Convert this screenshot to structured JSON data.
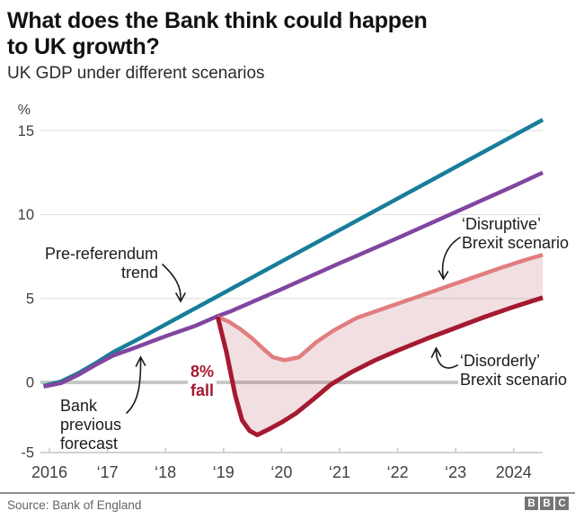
{
  "header": {
    "title_lines": [
      "What does the Bank think could happen",
      "to UK growth?"
    ],
    "subtitle": "UK GDP under different scenarios"
  },
  "annotations": {
    "pre_referendum": "Pre-referendum\ntrend",
    "bank_forecast": "Bank\nprevious\nforecast",
    "fall_callout": "8%\nfall",
    "disruptive": "‘Disruptive’\nBrexit scenario",
    "disorderly": "‘Disorderly’\nBrexit scenario"
  },
  "footer": {
    "source": "Source: Bank of England",
    "logo_letters": [
      "B",
      "B",
      "C"
    ]
  },
  "colors": {
    "pre_referendum": "#177e99",
    "bank_forecast": "#8146a0",
    "disruptive": "#e17d80",
    "disorderly": "#a51a31",
    "band_fill": "rgba(165,26,49,0.14)",
    "grid_minor": "#e3e3e3",
    "grid_zero": "#c7c7c7",
    "axis_line": "#d2d2d2",
    "axis_text": "#404040",
    "fall_text": "#a51a31"
  },
  "chart_data": {
    "type": "line",
    "title": "UK GDP under different scenarios",
    "xlabel": "",
    "ylabel": "%",
    "xlim": [
      2015.9,
      2024.5
    ],
    "ylim": [
      -5,
      16
    ],
    "grid": "horizontal",
    "legend_position": "inline-annotations",
    "y_axis": {
      "unit": "%",
      "ticks": [
        15,
        10,
        5,
        0,
        -5
      ]
    },
    "x_axis": {
      "ticks": [
        {
          "year": 2016,
          "label": "2016"
        },
        {
          "year": 2017,
          "label": "‘17"
        },
        {
          "year": 2018,
          "label": "‘18"
        },
        {
          "year": 2019,
          "label": "‘19"
        },
        {
          "year": 2020,
          "label": "‘20"
        },
        {
          "year": 2021,
          "label": "‘21"
        },
        {
          "year": 2022,
          "label": "‘22"
        },
        {
          "year": 2023,
          "label": "‘23"
        },
        {
          "year": 2024,
          "label": "2024"
        }
      ]
    },
    "series": [
      {
        "id": "pre_referendum",
        "name": "Pre-referendum trend",
        "color": "#177e99",
        "width": 4.5,
        "points": [
          [
            2015.9,
            -0.25
          ],
          [
            2016.2,
            0.05
          ],
          [
            2016.5,
            0.55
          ],
          [
            2016.8,
            1.15
          ],
          [
            2017.1,
            1.8
          ],
          [
            2017.6,
            2.7
          ],
          [
            2024.5,
            15.65
          ]
        ]
      },
      {
        "id": "bank_forecast",
        "name": "Bank previous forecast",
        "color": "#8146a0",
        "width": 4.5,
        "points": [
          [
            2015.9,
            -0.3
          ],
          [
            2016.2,
            -0.05
          ],
          [
            2016.5,
            0.45
          ],
          [
            2016.8,
            1.05
          ],
          [
            2017.1,
            1.6
          ],
          [
            2017.5,
            2.1
          ],
          [
            2018.0,
            2.75
          ],
          [
            2018.5,
            3.35
          ],
          [
            2018.9,
            3.95
          ],
          [
            2019.1,
            4.2
          ],
          [
            2020.0,
            5.55
          ],
          [
            2021.0,
            7.1
          ],
          [
            2022.0,
            8.6
          ],
          [
            2023.0,
            10.15
          ],
          [
            2024.0,
            11.7
          ],
          [
            2024.5,
            12.5
          ]
        ]
      },
      {
        "id": "disruptive",
        "name": "‘Disruptive’ Brexit scenario",
        "color": "#e17d80",
        "width": 4.5,
        "points": [
          [
            2018.9,
            3.9
          ],
          [
            2019.1,
            3.6
          ],
          [
            2019.3,
            3.15
          ],
          [
            2019.5,
            2.6
          ],
          [
            2019.7,
            1.95
          ],
          [
            2019.85,
            1.5
          ],
          [
            2020.05,
            1.32
          ],
          [
            2020.3,
            1.5
          ],
          [
            2020.6,
            2.4
          ],
          [
            2020.9,
            3.1
          ],
          [
            2021.3,
            3.85
          ],
          [
            2021.8,
            4.45
          ],
          [
            2022.3,
            5.05
          ],
          [
            2022.8,
            5.65
          ],
          [
            2023.3,
            6.25
          ],
          [
            2023.8,
            6.85
          ],
          [
            2024.2,
            7.3
          ],
          [
            2024.5,
            7.6
          ]
        ]
      },
      {
        "id": "disorderly",
        "name": "‘Disorderly’ Brexit scenario",
        "color": "#a51a31",
        "width": 5,
        "points": [
          [
            2018.9,
            3.9
          ],
          [
            2019.05,
            1.8
          ],
          [
            2019.2,
            -0.9
          ],
          [
            2019.32,
            -2.7
          ],
          [
            2019.45,
            -3.45
          ],
          [
            2019.58,
            -3.75
          ],
          [
            2019.8,
            -3.3
          ],
          [
            2020.0,
            -2.85
          ],
          [
            2020.25,
            -2.2
          ],
          [
            2020.55,
            -1.2
          ],
          [
            2020.85,
            -0.15
          ],
          [
            2021.2,
            0.6
          ],
          [
            2021.6,
            1.3
          ],
          [
            2022.0,
            1.9
          ],
          [
            2022.5,
            2.6
          ],
          [
            2023.0,
            3.25
          ],
          [
            2023.5,
            3.9
          ],
          [
            2024.0,
            4.5
          ],
          [
            2024.5,
            5.05
          ]
        ]
      }
    ],
    "band": {
      "upper": "disruptive",
      "lower": "disorderly",
      "fill": "rgba(165,26,49,0.14)"
    },
    "annotations": [
      {
        "text": "Pre-referendum trend",
        "target_series": "pre_referendum"
      },
      {
        "text": "Bank previous forecast",
        "target_series": "bank_forecast"
      },
      {
        "text": "8% fall",
        "note": "peak-to-trough fall in disorderly scenario"
      },
      {
        "text": "‘Disruptive’ Brexit scenario",
        "target_series": "disruptive"
      },
      {
        "text": "‘Disorderly’ Brexit scenario",
        "target_series": "disorderly"
      }
    ]
  }
}
